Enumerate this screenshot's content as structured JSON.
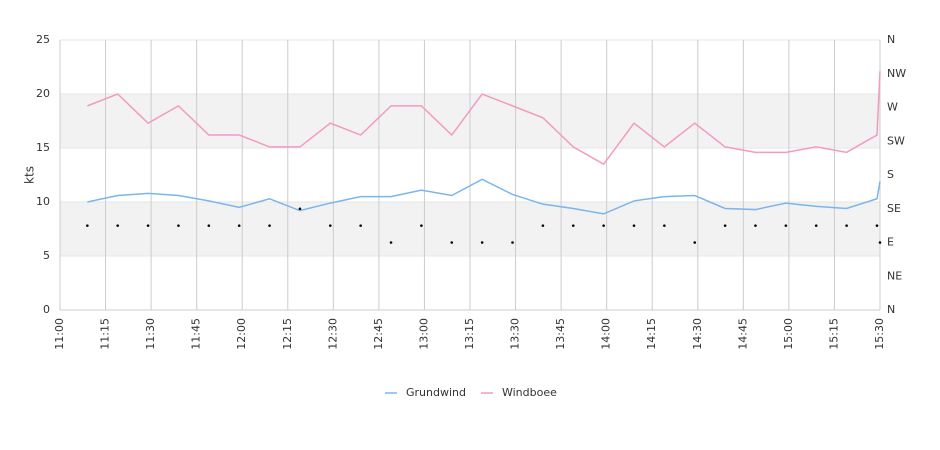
{
  "chart_data": {
    "type": "line",
    "ylabel": "kts",
    "x": [
      "11:09",
      "11:19",
      "11:29",
      "11:39",
      "11:49",
      "11:59",
      "12:09",
      "12:19",
      "12:29",
      "12:39",
      "12:49",
      "12:59",
      "13:09",
      "13:19",
      "13:29",
      "13:39",
      "13:49",
      "13:59",
      "14:09",
      "14:19",
      "14:29",
      "14:39",
      "14:49",
      "14:59",
      "15:09",
      "15:19",
      "15:29",
      "15:30"
    ],
    "xlim": [
      "11:00",
      "15:30"
    ],
    "xticks": [
      "11:00",
      "11:15",
      "11:30",
      "11:45",
      "12:00",
      "12:15",
      "12:30",
      "12:45",
      "13:00",
      "13:15",
      "13:30",
      "13:45",
      "14:00",
      "14:15",
      "14:30",
      "14:45",
      "15:00",
      "15:15",
      "15:30"
    ],
    "ylim": [
      0,
      25
    ],
    "yticks": [
      0,
      5,
      10,
      15,
      20,
      25
    ],
    "y2lim": [
      0,
      360
    ],
    "y2ticks": [
      {
        "value": 0,
        "label": "N"
      },
      {
        "value": 45,
        "label": "NE"
      },
      {
        "value": 90,
        "label": "E"
      },
      {
        "value": 135,
        "label": "SE"
      },
      {
        "value": 180,
        "label": "S"
      },
      {
        "value": 225,
        "label": "SW"
      },
      {
        "value": 270,
        "label": "W"
      },
      {
        "value": 315,
        "label": "NW"
      },
      {
        "value": 360,
        "label": "N"
      }
    ],
    "grid": true,
    "legend": "bottom",
    "series": [
      {
        "name": "Grundwind",
        "color": "#7cb5ec",
        "values": [
          10.0,
          10.6,
          10.8,
          10.6,
          10.1,
          9.5,
          10.3,
          9.2,
          9.9,
          10.5,
          10.5,
          11.1,
          10.6,
          12.1,
          10.7,
          9.8,
          9.4,
          8.9,
          10.1,
          10.5,
          10.6,
          9.4,
          9.3,
          9.9,
          9.6,
          9.4,
          10.3,
          11.9
        ]
      },
      {
        "name": "Windboee",
        "color": "#f49ac1",
        "values": [
          18.9,
          20.0,
          17.3,
          18.9,
          16.2,
          16.2,
          15.1,
          15.1,
          17.3,
          16.2,
          18.9,
          18.9,
          16.2,
          20.0,
          18.9,
          17.8,
          15.1,
          13.5,
          17.3,
          15.1,
          17.3,
          15.1,
          14.6,
          14.6,
          15.1,
          14.6,
          16.2,
          22.1
        ]
      },
      {
        "type": "scatter",
        "axis": "y2",
        "color": "#000000",
        "values": [
          112.5,
          112.5,
          112.5,
          112.5,
          112.5,
          112.5,
          112.5,
          135,
          112.5,
          112.5,
          90,
          112.5,
          90,
          90,
          90,
          112.5,
          112.5,
          112.5,
          112.5,
          112.5,
          90,
          112.5,
          112.5,
          112.5,
          112.5,
          112.5,
          112.5,
          90
        ]
      }
    ]
  }
}
